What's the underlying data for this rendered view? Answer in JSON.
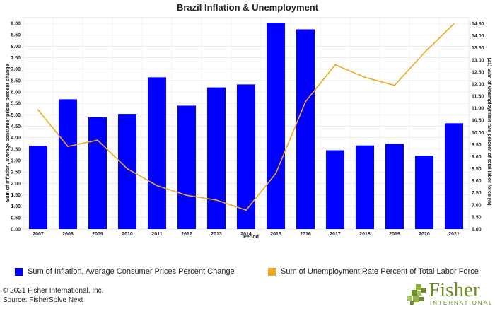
{
  "chart_data": {
    "type": "bar",
    "title": "Brazil Inflation & Unemployment",
    "xlabel": "Period",
    "ylabel": "Sum of Inflation, average consumer prices percent change",
    "y2label": "(Z1) Sum of Unemployment rate percent of total labor force (%)",
    "categories": [
      "2007",
      "2008",
      "2009",
      "2010",
      "2011",
      "2012",
      "2013",
      "2014",
      "2015",
      "2016",
      "2017",
      "2018",
      "2019",
      "2020",
      "2021"
    ],
    "ylim": [
      0,
      9.25
    ],
    "y_ticks": [
      "0.00",
      "0.50",
      "1.00",
      "1.50",
      "2.00",
      "2.50",
      "3.00",
      "3.50",
      "4.00",
      "4.50",
      "5.00",
      "5.50",
      "6.00",
      "6.50",
      "7.00",
      "7.50",
      "8.00",
      "8.50",
      "9.00"
    ],
    "y2lim": [
      6.0,
      14.75
    ],
    "y2_ticks": [
      "6.00",
      "6.50",
      "7.00",
      "7.50",
      "8.00",
      "8.50",
      "9.00",
      "9.50",
      "10.00",
      "10.50",
      "11.00",
      "11.50",
      "12.00",
      "12.50",
      "13.00",
      "13.50",
      "14.00",
      "14.50"
    ],
    "grid": true,
    "legend_position": "bottom",
    "series": [
      {
        "name": "Sum of Inflation, Average Consumer Prices Percent Change",
        "type": "bar",
        "axis": "left",
        "color": "#0000ff",
        "values": [
          3.64,
          5.68,
          4.89,
          5.04,
          6.64,
          5.4,
          6.2,
          6.33,
          9.03,
          8.74,
          3.45,
          3.66,
          3.73,
          3.21,
          4.63
        ]
      },
      {
        "name": "Sum of Unemployment Rate Percent of Total Labor Force",
        "type": "line",
        "axis": "right",
        "color": "#f0a820",
        "values": [
          10.93,
          9.42,
          9.68,
          8.5,
          7.8,
          7.4,
          7.2,
          6.78,
          8.3,
          11.27,
          12.8,
          12.28,
          11.95,
          13.3,
          14.5
        ]
      }
    ]
  },
  "footer": {
    "copyright": "© 2021 Fisher International, Inc.",
    "source": "Source: FisherSolve Next"
  },
  "logo": {
    "name": "Fisher",
    "subtitle": "INTERNATIONAL"
  }
}
